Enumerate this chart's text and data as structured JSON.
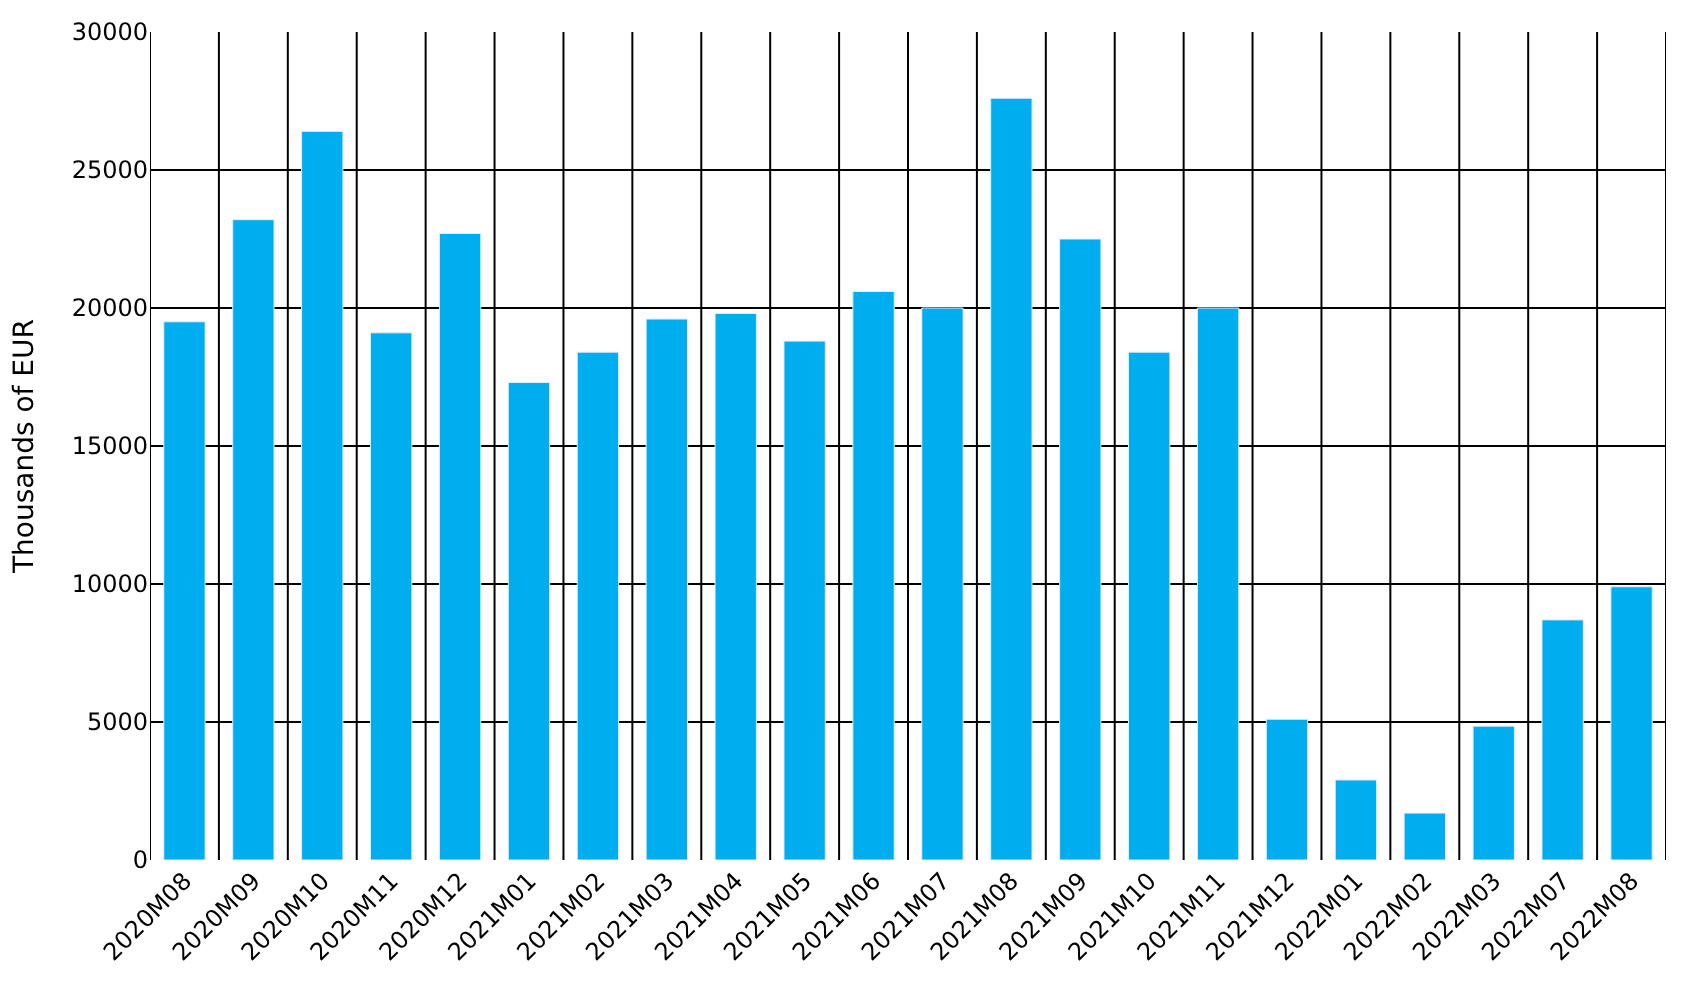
{
  "chart_data": {
    "type": "bar",
    "ylabel": "Thousands of EUR",
    "categories": [
      "2020M08",
      "2020M09",
      "2020M10",
      "2020M11",
      "2020M12",
      "2021M01",
      "2021M02",
      "2021M03",
      "2021M04",
      "2021M05",
      "2021M06",
      "2021M07",
      "2021M08",
      "2021M09",
      "2021M10",
      "2021M11",
      "2021M12",
      "2022M01",
      "2022M02",
      "2022M03",
      "2022M07",
      "2022M08"
    ],
    "values": [
      19500,
      23200,
      26400,
      19100,
      22700,
      17300,
      18400,
      19600,
      19800,
      18800,
      20600,
      20000,
      27600,
      22500,
      18400,
      20000,
      5100,
      2900,
      1700,
      4850,
      8700,
      9900
    ],
    "color": "#00aeef",
    "ylim": [
      0,
      30000
    ],
    "yticks": [
      0,
      5000,
      10000,
      15000,
      20000,
      25000,
      30000
    ],
    "grid": true,
    "legend": false
  }
}
